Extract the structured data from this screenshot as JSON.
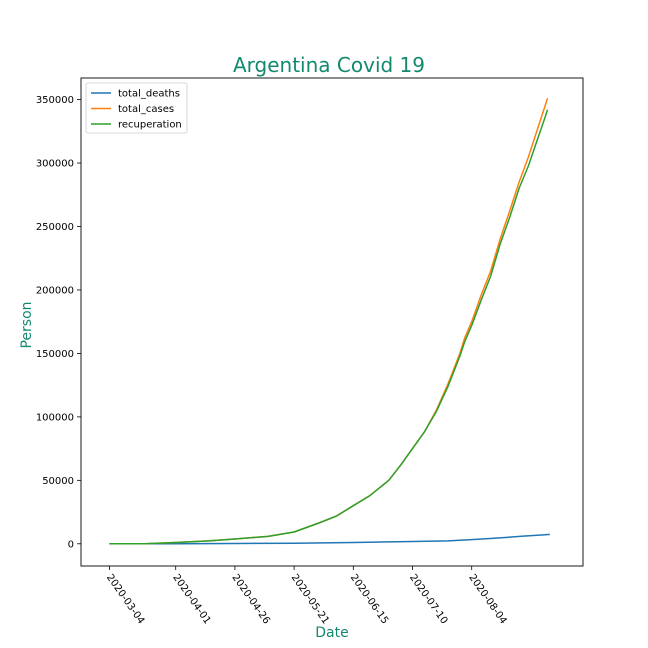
{
  "chart_data": {
    "type": "line",
    "title": "Argentina Covid 19",
    "xlabel": "Date",
    "ylabel": "Person",
    "x_ticks": [
      "2020-03-04",
      "2020-04-01",
      "2020-04-26",
      "2020-05-21",
      "2020-06-15",
      "2020-07-10",
      "2020-08-04"
    ],
    "y_ticks": [
      0,
      50000,
      100000,
      150000,
      200000,
      250000,
      300000,
      350000
    ],
    "x_range": [
      "2020-02-21",
      "2020-09-20"
    ],
    "ylim": [
      -17500,
      367000
    ],
    "grid": false,
    "legend_position": "upper left",
    "series": [
      {
        "name": "total_deaths",
        "color": "#1f77b4",
        "points": [
          [
            "2020-03-04",
            0
          ],
          [
            "2020-04-01",
            30
          ],
          [
            "2020-04-26",
            220
          ],
          [
            "2020-05-21",
            470
          ],
          [
            "2020-06-15",
            980
          ],
          [
            "2020-07-10",
            1770
          ],
          [
            "2020-07-25",
            2300
          ],
          [
            "2020-08-04",
            3300
          ],
          [
            "2020-08-15",
            4600
          ],
          [
            "2020-08-25",
            5900
          ],
          [
            "2020-09-04",
            7100
          ],
          [
            "2020-09-06",
            7400
          ]
        ]
      },
      {
        "name": "total_cases",
        "color": "#ff7f0e",
        "points": [
          [
            "2020-03-04",
            0
          ],
          [
            "2020-03-20",
            150
          ],
          [
            "2020-04-01",
            1050
          ],
          [
            "2020-04-15",
            2300
          ],
          [
            "2020-04-26",
            3800
          ],
          [
            "2020-05-10",
            5800
          ],
          [
            "2020-05-21",
            9300
          ],
          [
            "2020-06-01",
            16800
          ],
          [
            "2020-06-08",
            22000
          ],
          [
            "2020-06-15",
            30000
          ],
          [
            "2020-06-22",
            38000
          ],
          [
            "2020-06-30",
            50000
          ],
          [
            "2020-07-05",
            62000
          ],
          [
            "2020-07-10",
            75000
          ],
          [
            "2020-07-15",
            88000
          ],
          [
            "2020-07-20",
            105000
          ],
          [
            "2020-07-25",
            126000
          ],
          [
            "2020-07-30",
            150000
          ],
          [
            "2020-08-01",
            162000
          ],
          [
            "2020-08-04",
            175000
          ],
          [
            "2020-08-08",
            196000
          ],
          [
            "2020-08-12",
            215000
          ],
          [
            "2020-08-16",
            240000
          ],
          [
            "2020-08-20",
            262000
          ],
          [
            "2020-08-24",
            285000
          ],
          [
            "2020-08-28",
            305000
          ],
          [
            "2020-09-01",
            328000
          ],
          [
            "2020-09-04",
            345000
          ],
          [
            "2020-09-05",
            351000
          ]
        ]
      },
      {
        "name": "recuperation",
        "color": "#2ca02c",
        "points": [
          [
            "2020-03-04",
            0
          ],
          [
            "2020-03-20",
            150
          ],
          [
            "2020-04-01",
            1050
          ],
          [
            "2020-04-15",
            2300
          ],
          [
            "2020-04-26",
            3800
          ],
          [
            "2020-05-10",
            5800
          ],
          [
            "2020-05-21",
            9300
          ],
          [
            "2020-06-01",
            16800
          ],
          [
            "2020-06-08",
            22000
          ],
          [
            "2020-06-15",
            30000
          ],
          [
            "2020-06-22",
            38000
          ],
          [
            "2020-06-30",
            50000
          ],
          [
            "2020-07-05",
            62000
          ],
          [
            "2020-07-10",
            75000
          ],
          [
            "2020-07-15",
            88000
          ],
          [
            "2020-07-20",
            104000
          ],
          [
            "2020-07-25",
            124000
          ],
          [
            "2020-07-30",
            148000
          ],
          [
            "2020-08-01",
            159000
          ],
          [
            "2020-08-04",
            172000
          ],
          [
            "2020-08-08",
            192000
          ],
          [
            "2020-08-12",
            211000
          ],
          [
            "2020-08-16",
            236000
          ],
          [
            "2020-08-20",
            257000
          ],
          [
            "2020-08-24",
            280000
          ],
          [
            "2020-08-28",
            298000
          ],
          [
            "2020-09-01",
            320000
          ],
          [
            "2020-09-04",
            336000
          ],
          [
            "2020-09-05",
            342000
          ]
        ]
      }
    ]
  },
  "colors": {
    "title": "#13896f",
    "axis_label": "#13896f"
  }
}
